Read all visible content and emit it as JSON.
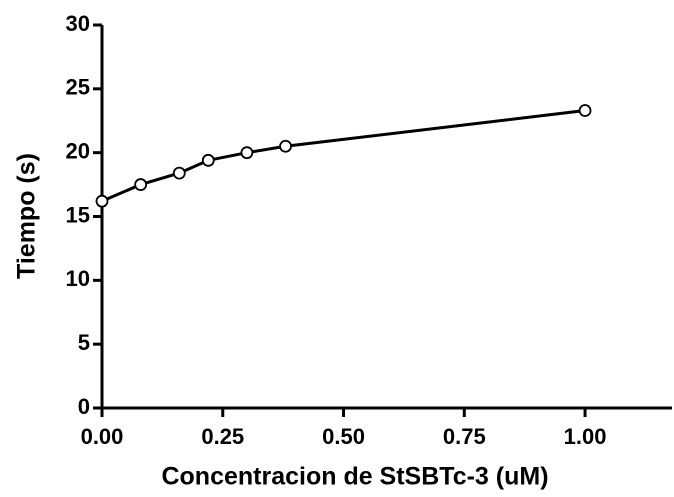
{
  "chart_data": {
    "type": "line",
    "x_label": "Concentracion de StSBTc-3 (uM)",
    "y_label": "Tiempo (s)",
    "x": [
      0,
      0.08,
      0.16,
      0.22,
      0.3,
      0.38,
      1.0
    ],
    "series": [
      {
        "color": "#000000",
        "values": [
          16.2,
          17.5,
          18.4,
          19.4,
          20.0,
          20.5,
          23.3
        ]
      }
    ],
    "xlim": [
      0,
      1.18
    ],
    "ylim": [
      0,
      30
    ],
    "xticks": [
      {
        "value": 0,
        "label": "0.00"
      },
      {
        "value": 0.25,
        "label": "0.25"
      },
      {
        "value": 0.5,
        "label": "0.50"
      },
      {
        "value": 0.75,
        "label": "0.75"
      },
      {
        "value": 1.0,
        "label": "1.00"
      }
    ],
    "yticks": [
      0,
      5,
      10,
      15,
      20,
      25,
      30
    ],
    "grid": false
  }
}
